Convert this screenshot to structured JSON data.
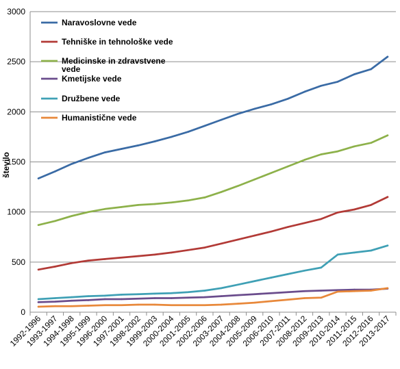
{
  "chart_data": {
    "type": "line",
    "title": "",
    "xlabel": "",
    "ylabel": "število",
    "ylim": [
      0,
      3000
    ],
    "yticks": [
      "0",
      "500",
      "1000",
      "1500",
      "2000",
      "2500",
      "3000"
    ],
    "grid": true,
    "legend_position": "top-left",
    "categories": [
      "1992-1996",
      "1993-1997",
      "1994-1998",
      "1995-1999",
      "1996-2000",
      "1997-2001",
      "1998-2002",
      "1999-2003",
      "2000-2004",
      "2001-2005",
      "2002-2006",
      "2003-2007",
      "2004-2008",
      "2005-2009",
      "2006-2010",
      "2007-2011",
      "2008-2012",
      "2009-2013",
      "2010-2014",
      "2011-2015",
      "2012-2016",
      "2013-2017"
    ],
    "series": [
      {
        "name": "Naravoslovne vede",
        "legend_lines": [
          "Naravoslovne vede"
        ],
        "color": "#3A6BA5",
        "values": [
          1335,
          1405,
          1480,
          1540,
          1595,
          1630,
          1665,
          1705,
          1750,
          1800,
          1860,
          1920,
          1980,
          2030,
          2075,
          2130,
          2200,
          2260,
          2300,
          2375,
          2425,
          2550
        ]
      },
      {
        "name": "Tehniške in tehnološke vede",
        "legend_lines": [
          "Tehniške in tehnološke vede"
        ],
        "color": "#B23A36",
        "values": [
          425,
          455,
          490,
          515,
          530,
          545,
          560,
          575,
          595,
          620,
          645,
          685,
          725,
          765,
          805,
          850,
          890,
          930,
          995,
          1025,
          1070,
          1150
        ]
      },
      {
        "name": "Medicinske in zdravstvene vede",
        "legend_lines": [
          "Medicinske in zdravstvene",
          "vede"
        ],
        "color": "#8DB14A",
        "values": [
          870,
          910,
          960,
          1000,
          1030,
          1050,
          1070,
          1080,
          1095,
          1115,
          1145,
          1200,
          1260,
          1325,
          1390,
          1455,
          1520,
          1575,
          1605,
          1655,
          1690,
          1765
        ]
      },
      {
        "name": "Kmetijske vede",
        "legend_lines": [
          "Kmetijske vede"
        ],
        "color": "#6A4C8C",
        "values": [
          100,
          105,
          115,
          120,
          130,
          130,
          135,
          140,
          140,
          145,
          150,
          160,
          170,
          180,
          190,
          200,
          210,
          215,
          220,
          225,
          225,
          235
        ]
      },
      {
        "name": "Družbene vede",
        "legend_lines": [
          "Družbene vede"
        ],
        "color": "#3FA0B5",
        "values": [
          130,
          140,
          150,
          160,
          165,
          175,
          180,
          185,
          190,
          200,
          215,
          240,
          275,
          310,
          345,
          380,
          415,
          445,
          575,
          595,
          615,
          665
        ]
      },
      {
        "name": "Humanistične vede",
        "legend_lines": [
          "Humanistične vede"
        ],
        "color": "#E8883A",
        "values": [
          55,
          60,
          60,
          65,
          70,
          70,
          75,
          75,
          70,
          70,
          70,
          75,
          85,
          95,
          110,
          125,
          140,
          145,
          205,
          210,
          215,
          240
        ]
      }
    ]
  }
}
